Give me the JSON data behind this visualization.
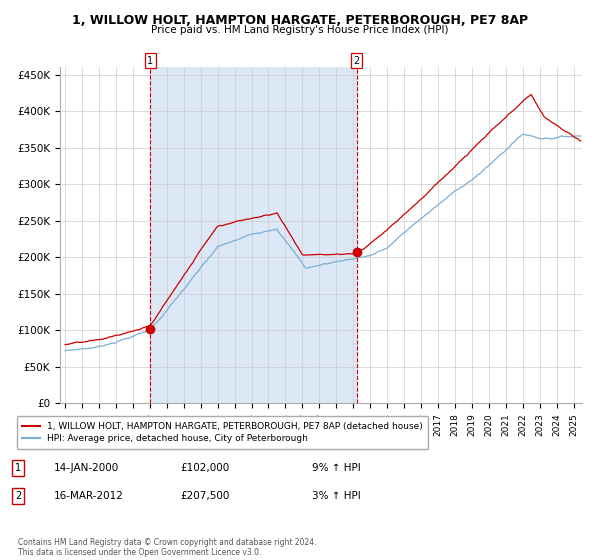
{
  "title1": "1, WILLOW HOLT, HAMPTON HARGATE, PETERBOROUGH, PE7 8AP",
  "title2": "Price paid vs. HM Land Registry's House Price Index (HPI)",
  "ylim": [
    0,
    460000
  ],
  "yticks": [
    0,
    50000,
    100000,
    150000,
    200000,
    250000,
    300000,
    350000,
    400000,
    450000
  ],
  "ytick_labels": [
    "£0",
    "£50K",
    "£100K",
    "£150K",
    "£200K",
    "£250K",
    "£300K",
    "£350K",
    "£400K",
    "£450K"
  ],
  "sale1_price": 102000,
  "sale1_label": "14-JAN-2000",
  "sale1_hpi": "9% ↑ HPI",
  "sale2_price": 207500,
  "sale2_label": "16-MAR-2012",
  "sale2_hpi": "3% ↑ HPI",
  "background_color": "#ffffff",
  "shaded_color": "#dce8f5",
  "grid_color": "#cccccc",
  "hpi_line_color": "#7aaed6",
  "sale_line_color": "#cc0000",
  "sale_dot_color": "#cc0000",
  "vline_color": "#cc0000",
  "legend_sale_label": "1, WILLOW HOLT, HAMPTON HARGATE, PETERBOROUGH, PE7 8AP (detached house)",
  "legend_hpi_label": "HPI: Average price, detached house, City of Peterborough",
  "footer": "Contains HM Land Registry data © Crown copyright and database right 2024.\nThis data is licensed under the Open Government Licence v3.0.",
  "xstart": 1994.7,
  "xend": 2025.5
}
